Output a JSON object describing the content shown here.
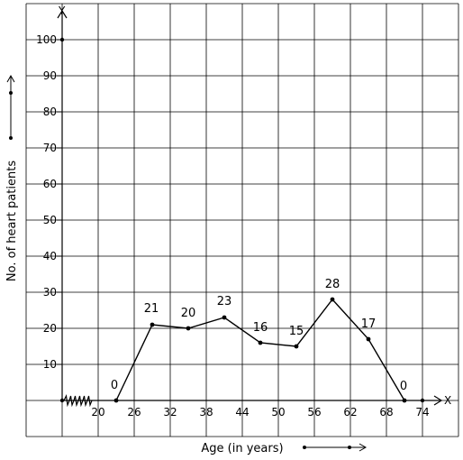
{
  "chart_data": {
    "type": "line",
    "title": "",
    "xlabel": "Age (in years)",
    "ylabel": "No. of heart patients",
    "x_axis_letter": "X",
    "y_axis_letter": "Y",
    "x_ticks": [
      "20",
      "26",
      "32",
      "38",
      "44",
      "50",
      "56",
      "62",
      "68",
      "74"
    ],
    "y_ticks": [
      "10",
      "20",
      "30",
      "40",
      "50",
      "60",
      "70",
      "80",
      "90",
      "100"
    ],
    "ylim": [
      0,
      100
    ],
    "x_break": true,
    "grid": true,
    "series": [
      {
        "x": [
          23,
          29,
          35,
          41,
          47,
          53,
          59,
          65,
          71
        ],
        "values": [
          0,
          21,
          20,
          23,
          16,
          15,
          28,
          17,
          0
        ],
        "labels": [
          "0",
          "21",
          "20",
          "23",
          "16",
          "15",
          "28",
          "17",
          "0"
        ]
      }
    ]
  }
}
